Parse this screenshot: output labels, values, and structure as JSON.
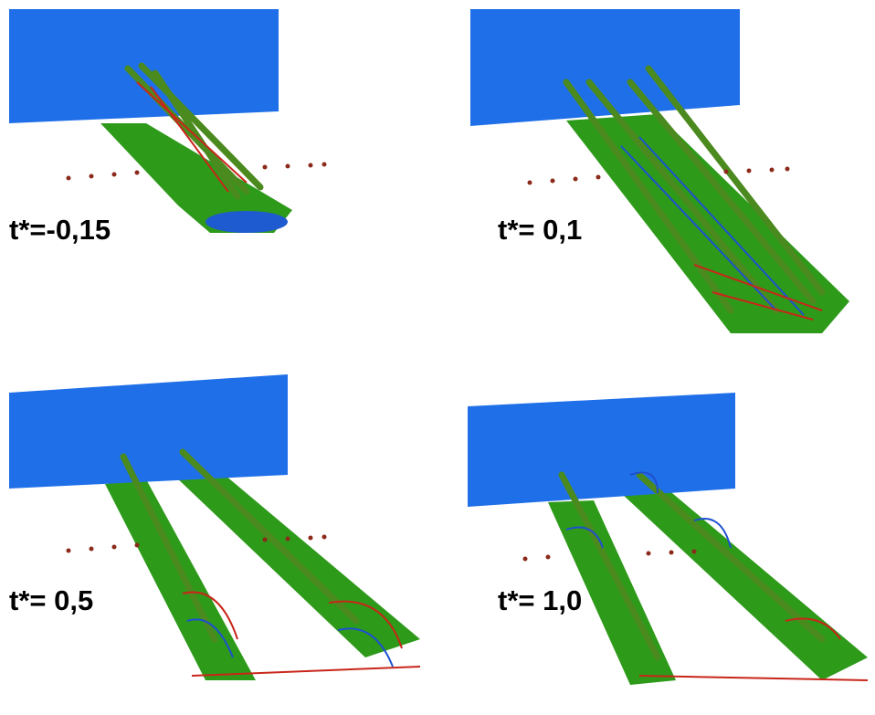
{
  "panels": [
    {
      "label": "t*=-0,15"
    },
    {
      "label": "t*= 0,1"
    },
    {
      "label": "t*= 0,5"
    },
    {
      "label": "t*= 1,0"
    }
  ]
}
